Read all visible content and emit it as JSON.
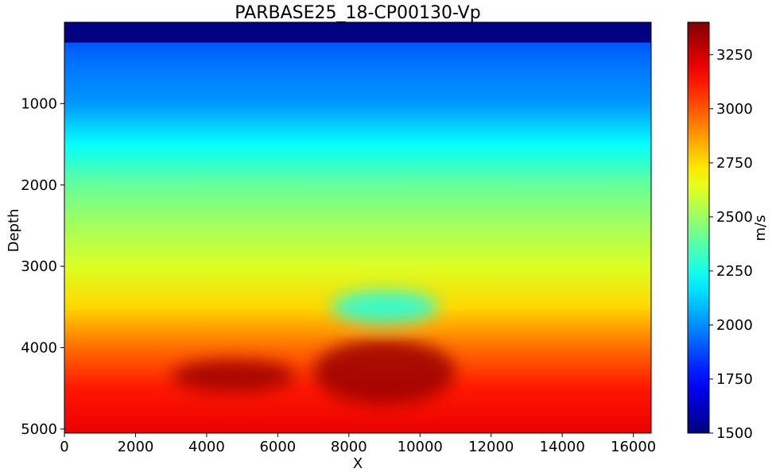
{
  "chart_data": {
    "type": "heatmap",
    "title": "PARBASE25_18-CP00130-Vp",
    "xlabel": "X",
    "ylabel": "Depth",
    "xlim": [
      0,
      16500
    ],
    "ylim": [
      5050,
      0
    ],
    "xticks": [
      0,
      2000,
      4000,
      6000,
      8000,
      10000,
      12000,
      14000,
      16000
    ],
    "yticks": [
      1000,
      2000,
      3000,
      4000,
      5000
    ],
    "colormap": "jet",
    "colorbar": {
      "label": "m/s",
      "range": [
        1500,
        3400
      ],
      "ticks": [
        1500,
        1750,
        2000,
        2250,
        2500,
        2750,
        3000,
        3250
      ]
    },
    "velocity_profile": {
      "water_layer": {
        "depth_from": 0,
        "depth_to": 250,
        "value": 1500
      },
      "depth": [
        250,
        500,
        1000,
        1500,
        2000,
        2500,
        3000,
        3500,
        4000,
        4500,
        5050
      ],
      "value": [
        1900,
        1950,
        2020,
        2220,
        2400,
        2520,
        2620,
        2760,
        2960,
        3120,
        3200
      ]
    },
    "anomalies": [
      {
        "kind": "low-velocity lens",
        "x": [
          7500,
          10500
        ],
        "depth": [
          3300,
          3700
        ],
        "value": 2250
      },
      {
        "kind": "high-velocity dome",
        "x": [
          7000,
          11000
        ],
        "depth": [
          3900,
          4700
        ],
        "value": 3350
      },
      {
        "kind": "high-velocity band",
        "x": [
          3000,
          6500
        ],
        "depth": [
          4150,
          4550
        ],
        "value": 3350
      }
    ],
    "grid": false,
    "legend": "none"
  }
}
